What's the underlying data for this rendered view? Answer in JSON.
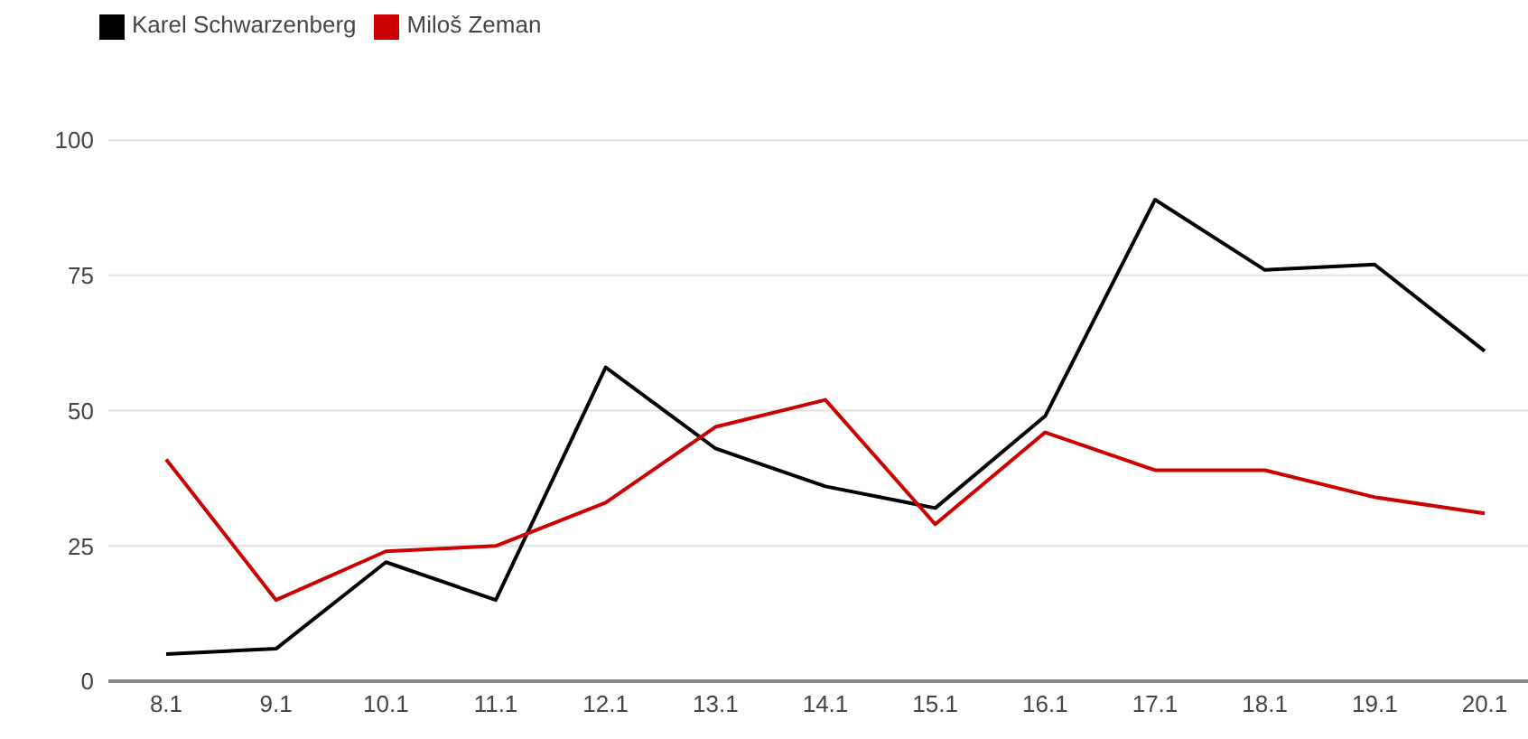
{
  "chart_data": {
    "type": "line",
    "categories": [
      "8.1",
      "9.1",
      "10.1",
      "11.1",
      "12.1",
      "13.1",
      "14.1",
      "15.1",
      "16.1",
      "17.1",
      "18.1",
      "19.1",
      "20.1"
    ],
    "series": [
      {
        "name": "Karel Schwarzenberg",
        "color": "#000000",
        "values": [
          5,
          6,
          22,
          15,
          58,
          43,
          36,
          32,
          49,
          89,
          76,
          77,
          61
        ]
      },
      {
        "name": "Miloš Zeman",
        "color": "#cc0000",
        "values": [
          41,
          15,
          24,
          25,
          33,
          47,
          52,
          29,
          46,
          39,
          39,
          34,
          31
        ]
      }
    ],
    "ylim": [
      0,
      100
    ],
    "yticks": [
      0,
      25,
      50,
      75,
      100
    ],
    "grid": "y",
    "legend": "top left",
    "marker": "none",
    "line_style": "solid"
  }
}
